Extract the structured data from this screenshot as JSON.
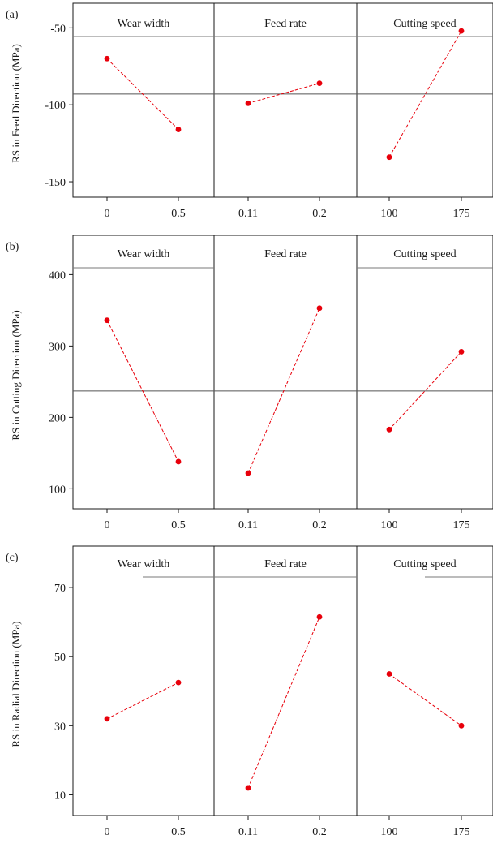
{
  "chart_data": [
    {
      "type": "line",
      "panel_label": "(a)",
      "ylabel": "RS in Feed Direction (MPa)",
      "ylim": [
        -160,
        -34
      ],
      "yticks": [
        -50,
        -100,
        -150
      ],
      "mean_line": -93,
      "factors": [
        {
          "name": "Wear width",
          "categories": [
            "0",
            "0.5"
          ],
          "values": [
            -70,
            -116
          ]
        },
        {
          "name": "Feed rate",
          "categories": [
            "0.11",
            "0.2"
          ],
          "values": [
            -99,
            -86
          ]
        },
        {
          "name": "Cutting speed",
          "categories": [
            "100",
            "175"
          ],
          "values": [
            -134,
            -52
          ]
        }
      ]
    },
    {
      "type": "line",
      "panel_label": "(b)",
      "ylabel": "RS in Cutting Direction (MPa)",
      "ylim": [
        72,
        455
      ],
      "yticks": [
        400,
        300,
        200,
        100
      ],
      "mean_line": 237,
      "factors": [
        {
          "name": "Wear width",
          "categories": [
            "0",
            "0.5"
          ],
          "values": [
            336,
            138
          ]
        },
        {
          "name": "Feed rate",
          "categories": [
            "0.11",
            "0.2"
          ],
          "values": [
            122,
            353
          ]
        },
        {
          "name": "Cutting speed",
          "categories": [
            "100",
            "175"
          ],
          "values": [
            183,
            292
          ]
        }
      ]
    },
    {
      "type": "line",
      "panel_label": "(c)",
      "ylabel": "RS in Radial Direction (MPa)",
      "ylim": [
        4,
        82
      ],
      "yticks": [
        70,
        50,
        30,
        10
      ],
      "mean_line": null,
      "factors": [
        {
          "name": "Wear width",
          "categories": [
            "0",
            "0.5"
          ],
          "values": [
            32,
            42.5
          ]
        },
        {
          "name": "Feed rate",
          "categories": [
            "0.11",
            "0.2"
          ],
          "values": [
            12,
            61.5
          ]
        },
        {
          "name": "Cutting speed",
          "categories": [
            "100",
            "175"
          ],
          "values": [
            45,
            30
          ]
        }
      ]
    }
  ],
  "colors": {
    "series": "#e8000b",
    "axis": "#1a1a1a",
    "header_line": "#7a7a7a"
  }
}
